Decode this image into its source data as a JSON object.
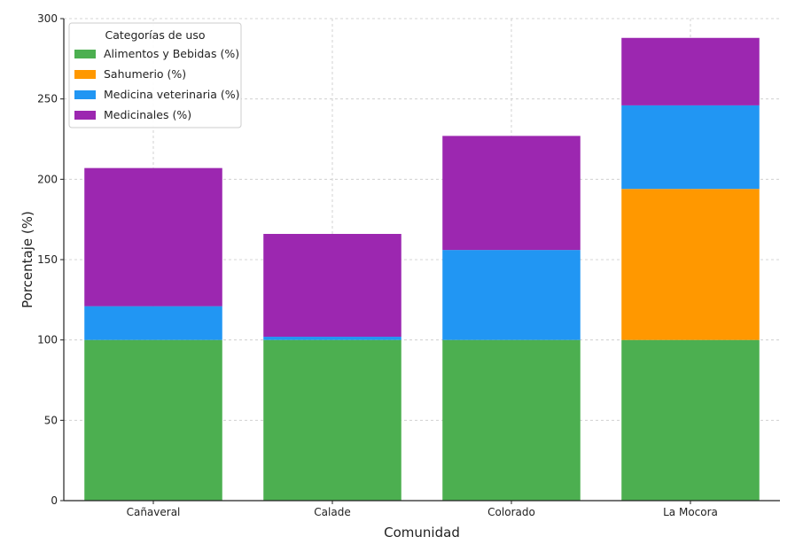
{
  "chart_data": {
    "type": "bar",
    "stacked": true,
    "title": "",
    "xlabel": "Comunidad",
    "ylabel": "Porcentaje (%)",
    "ylim": [
      0,
      300
    ],
    "yticks": [
      0,
      50,
      100,
      150,
      200,
      250,
      300
    ],
    "grid": true,
    "categories": [
      "Cañaveral",
      "Calade",
      "Colorado",
      "La Mocora"
    ],
    "series": [
      {
        "name": "Alimentos y Bebidas (%)",
        "color": "#4caf50",
        "values": [
          100,
          100,
          100,
          100
        ]
      },
      {
        "name": "Sahumerio (%)",
        "color": "#ff9800",
        "values": [
          0,
          0,
          0,
          94
        ]
      },
      {
        "name": "Medicina veterinaria (%)",
        "color": "#2196f3",
        "values": [
          21,
          2,
          56,
          52
        ]
      },
      {
        "name": "Medicinales (%)",
        "color": "#9c27b0",
        "values": [
          86,
          64,
          71,
          42
        ]
      }
    ],
    "legend": {
      "title": "Categorías de uso",
      "position": "top-left"
    }
  }
}
